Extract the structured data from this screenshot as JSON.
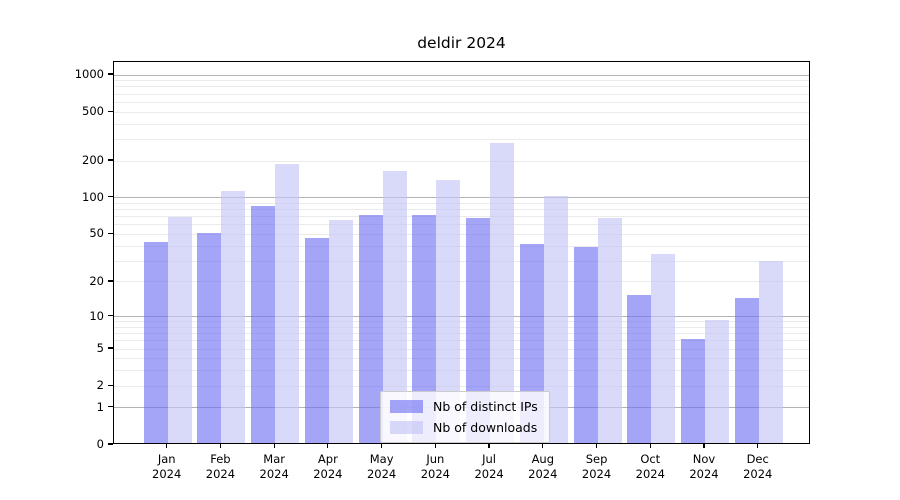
{
  "title": "deldir 2024",
  "chart_data": {
    "type": "bar",
    "title": "deldir 2024",
    "xlabel": "",
    "ylabel": "",
    "x_axis": {
      "categories": [
        "Jan",
        "Feb",
        "Mar",
        "Apr",
        "May",
        "Jun",
        "Jul",
        "Aug",
        "Sep",
        "Oct",
        "Nov",
        "Dec"
      ],
      "year": "2024"
    },
    "y_axis": {
      "scale": "log1p",
      "range": [
        0,
        1000
      ],
      "tick_values": [
        0,
        1,
        2,
        5,
        10,
        20,
        50,
        100,
        200,
        500,
        1000
      ],
      "major_gridlines": [
        1,
        10,
        100,
        1000
      ],
      "minor_gridlines": [
        2,
        3,
        4,
        5,
        6,
        7,
        8,
        9,
        20,
        30,
        40,
        50,
        60,
        70,
        80,
        90,
        200,
        300,
        400,
        500,
        600,
        700,
        800,
        900
      ]
    },
    "series": [
      {
        "name": "Nb of distinct IPs",
        "color": "#6e6ef2",
        "opacity": 0.62,
        "values": [
          42,
          50,
          83,
          45,
          70,
          70,
          66,
          40,
          38,
          15,
          6,
          14
        ]
      },
      {
        "name": "Nb of downloads",
        "color": "#c4c4f8",
        "opacity": 0.65,
        "values": [
          67,
          110,
          184,
          64,
          159,
          135,
          272,
          100,
          66,
          33,
          9,
          29
        ]
      }
    ],
    "legend": {
      "position": "inside-bottom-center",
      "entries": [
        "Nb of distinct IPs",
        "Nb of downloads"
      ]
    },
    "grid": true,
    "colors": {
      "bar_ips_rendered": "#a8a8f7",
      "bar_downloads_rendered": "#d9d9f8",
      "major_grid": "#b3b3b3",
      "minor_grid": "#ebebeb",
      "axis": "#000000"
    }
  }
}
